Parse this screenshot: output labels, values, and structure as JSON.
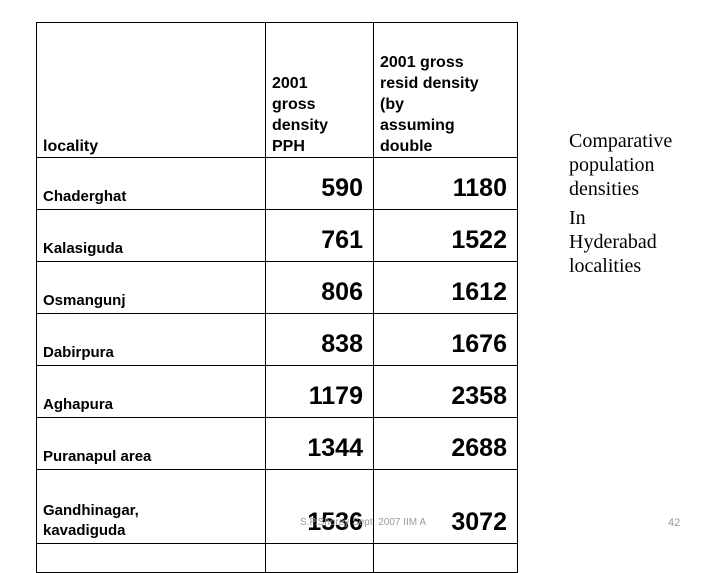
{
  "table": {
    "headers": {
      "locality": "locality",
      "gross_density": [
        "2001",
        "gross",
        "density",
        "PPH"
      ],
      "resid_density": [
        "2001 gross",
        "resid density",
        "(by",
        "assuming",
        "double"
      ]
    },
    "rows": [
      {
        "locality": "Chaderghat",
        "gross": "590",
        "resid": "1180"
      },
      {
        "locality": "Kalasiguda",
        "gross": "761",
        "resid": "1522"
      },
      {
        "locality": "Osmangunj",
        "gross": "806",
        "resid": "1612"
      },
      {
        "locality": "Dabirpura",
        "gross": "838",
        "resid": "1676"
      },
      {
        "locality": "Aghapura",
        "gross": "1179",
        "resid": "2358"
      },
      {
        "locality": "Puranapul area",
        "gross": "1344",
        "resid": "2688"
      },
      {
        "locality": [
          "Gandhinagar,",
          "kavadiguda"
        ],
        "gross": "1536",
        "resid": "3072"
      }
    ]
  },
  "caption": {
    "line1": [
      "Comparative",
      "population",
      "densities"
    ],
    "line2": [
      "In",
      "Hyderabad",
      "localities"
    ]
  },
  "footer": {
    "credit": "S.P.Shorey Sept. 2007 IIM A",
    "page_number": "42"
  }
}
